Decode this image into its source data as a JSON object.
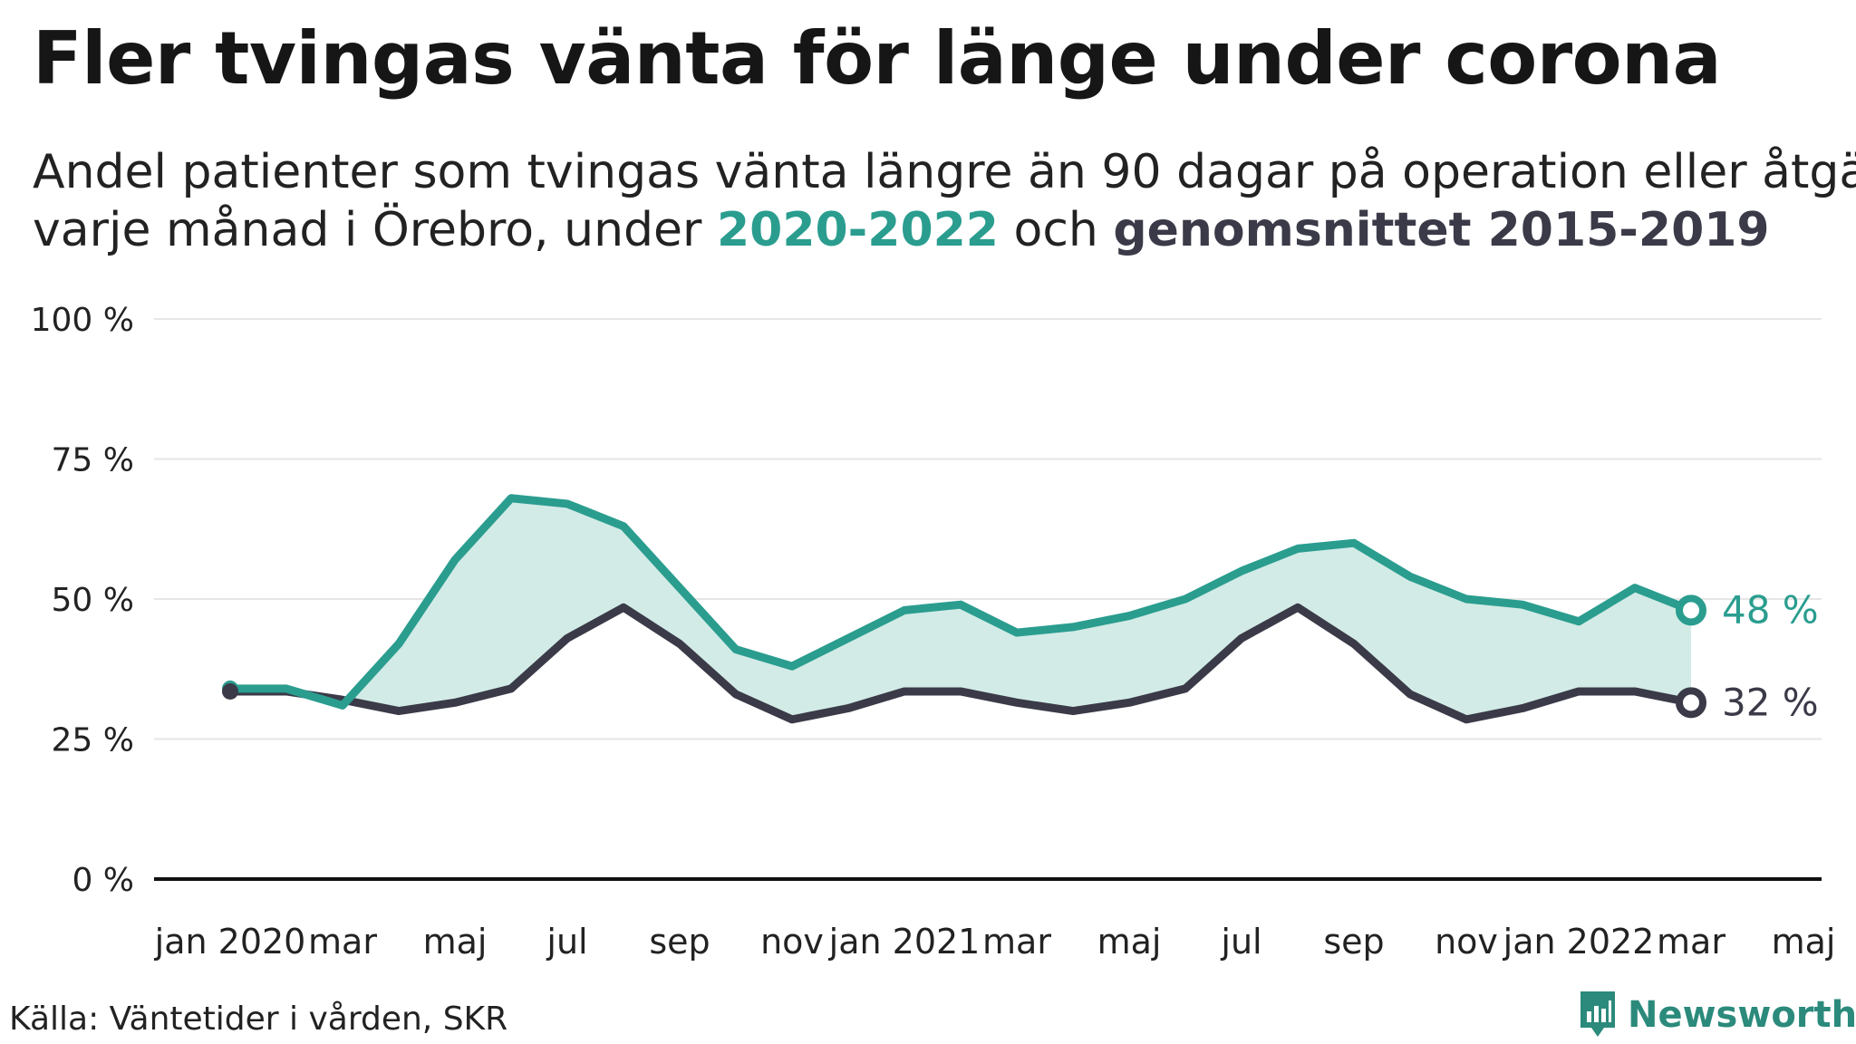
{
  "header": {
    "title": "Fler tvingas vänta för länge under corona",
    "subtitle_line1": "Andel patienter som tvingas vänta längre än 90 dagar på operation eller åtgärd",
    "subtitle_line2_prefix": "varje månad i Örebro, under ",
    "subtitle_highlight_a": "2020-2022",
    "subtitle_middle": " och ",
    "subtitle_highlight_b": "genomsnittet 2015-2019"
  },
  "footer": {
    "source": "Källa: Väntetider i vården, SKR",
    "brand": "Newsworthy"
  },
  "colors": {
    "teal": "#2a9d8f",
    "dark": "#3a3a48",
    "fill": "#d2ebe6",
    "brand": "#2b8a7c"
  },
  "chart_data": {
    "type": "line",
    "title": "Fler tvingas vänta för länge under corona",
    "ylim": [
      0,
      100
    ],
    "xlim": [
      0,
      28
    ],
    "grid": true,
    "area_between_series": true,
    "y_ticks": [
      {
        "value": 0,
        "label": "0 %"
      },
      {
        "value": 25,
        "label": "25 %"
      },
      {
        "value": 50,
        "label": "50 %"
      },
      {
        "value": 75,
        "label": "75 %"
      },
      {
        "value": 100,
        "label": "100 %"
      }
    ],
    "x_ticks": [
      {
        "value": 0,
        "label": "jan 2020"
      },
      {
        "value": 2,
        "label": "mar"
      },
      {
        "value": 4,
        "label": "maj"
      },
      {
        "value": 6,
        "label": "jul"
      },
      {
        "value": 8,
        "label": "sep"
      },
      {
        "value": 10,
        "label": "nov"
      },
      {
        "value": 12,
        "label": "jan 2021"
      },
      {
        "value": 14,
        "label": "mar"
      },
      {
        "value": 16,
        "label": "maj"
      },
      {
        "value": 18,
        "label": "jul"
      },
      {
        "value": 20,
        "label": "sep"
      },
      {
        "value": 22,
        "label": "nov"
      },
      {
        "value": 24,
        "label": "jan 2022"
      },
      {
        "value": 26,
        "label": "mar"
      },
      {
        "value": 28,
        "label": "maj"
      }
    ],
    "series": [
      {
        "name": "2020-2022",
        "color": "#2a9d8f",
        "values": [
          34,
          34,
          31,
          42,
          57,
          68,
          67,
          63,
          52,
          41,
          38,
          43,
          48,
          49,
          44,
          45,
          47,
          50,
          55,
          59,
          60,
          54,
          50,
          49,
          46,
          52,
          48
        ],
        "end_label": "48 %"
      },
      {
        "name": "genomsnittet 2015-2019",
        "color": "#3a3a48",
        "values": [
          33.5,
          33.5,
          32,
          30,
          31.5,
          34,
          43,
          48.5,
          42,
          33,
          28.5,
          30.5,
          33.5,
          33.5,
          31.5,
          30,
          31.5,
          34,
          43,
          48.5,
          42,
          33,
          28.5,
          30.5,
          33.5,
          33.5,
          31.5
        ],
        "end_label": "32 %"
      }
    ]
  }
}
